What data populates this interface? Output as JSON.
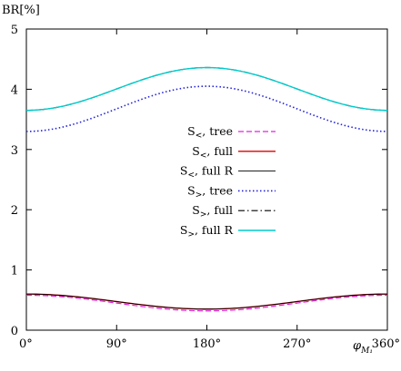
{
  "chart_data": {
    "type": "line",
    "ylabel": "BR[%]",
    "xlabel": "φ_{M1}",
    "xlabel_main": "φ",
    "xlabel_sub": "M₁",
    "xlim": [
      0,
      360
    ],
    "ylim": [
      0,
      5
    ],
    "x_ticks": [
      0,
      90,
      180,
      270,
      360
    ],
    "x_tick_labels": [
      "0°",
      "90°",
      "180°",
      "270°",
      "360°"
    ],
    "y_ticks": [
      0,
      1,
      2,
      3,
      4,
      5
    ],
    "y_tick_labels": [
      "0",
      "1",
      "2",
      "3",
      "4",
      "5"
    ],
    "grid": false,
    "legend_position": "center",
    "series": [
      {
        "name": "S<, tree",
        "name_main": "S",
        "name_sub": "<",
        "name_rest": ", tree",
        "color": "#e020e0",
        "dash": "6,3",
        "width": 1.2,
        "y0": 0.58,
        "y180": 0.32
      },
      {
        "name": "S<, full",
        "name_main": "S",
        "name_sub": "<",
        "name_rest": ", full",
        "color": "#dd0000",
        "dash": "",
        "width": 1.4,
        "y0": 0.6,
        "y180": 0.35
      },
      {
        "name": "S<, full R",
        "name_main": "S",
        "name_sub": "<",
        "name_rest": ", full R",
        "color": "#000000",
        "dash": "",
        "width": 0.9,
        "y0": 0.6,
        "y180": 0.35
      },
      {
        "name": "S>, tree",
        "name_main": "S",
        "name_sub": ">",
        "name_rest": ", tree",
        "color": "#2222dd",
        "dash": "1.5,2.5",
        "width": 1.6,
        "y0": 3.3,
        "y180": 4.05
      },
      {
        "name": "S>, full",
        "name_main": "S",
        "name_sub": ">",
        "name_rest": ", full",
        "color": "#000000",
        "dash": "7,3,1.5,3",
        "width": 1.2,
        "y0": 3.65,
        "y180": 4.36
      },
      {
        "name": "S>, full R",
        "name_main": "S",
        "name_sub": ">",
        "name_rest": ", full R",
        "color": "#00cccc",
        "dash": "",
        "width": 1.4,
        "y0": 3.65,
        "y180": 4.36
      }
    ]
  }
}
